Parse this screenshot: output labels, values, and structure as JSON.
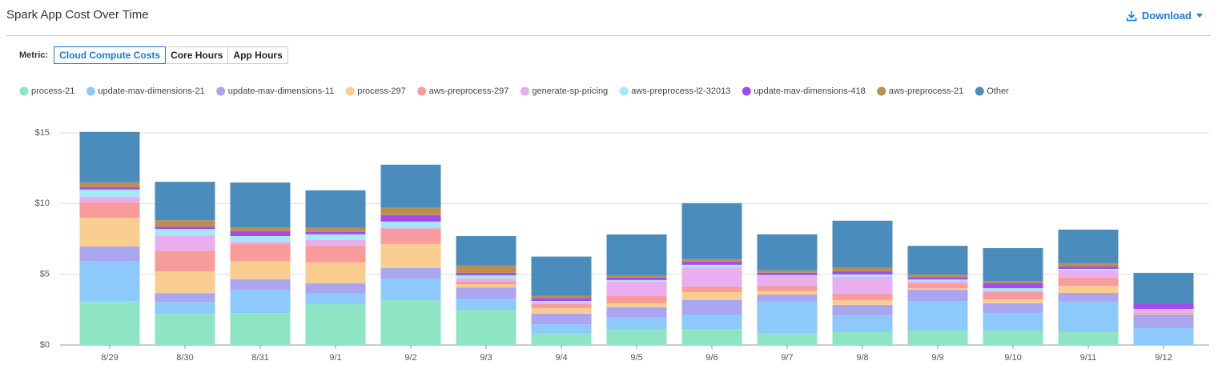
{
  "header": {
    "title": "Spark App Cost Over Time",
    "download": "Download"
  },
  "metric": {
    "label": "Metric:",
    "options": [
      "Cloud Compute Costs",
      "Core Hours",
      "App Hours"
    ],
    "selected": 0
  },
  "chart_data": {
    "type": "stacked-bar",
    "categories": [
      "8/29",
      "8/30",
      "8/31",
      "9/1",
      "9/2",
      "9/3",
      "9/4",
      "9/5",
      "9/6",
      "9/7",
      "9/8",
      "9/9",
      "9/10",
      "9/11",
      "9/12"
    ],
    "ylim": [
      0,
      15
    ],
    "yticks": [
      {
        "value": 0,
        "label": "$0"
      },
      {
        "value": 5,
        "label": "$5"
      },
      {
        "value": 10,
        "label": "$10"
      },
      {
        "value": 15,
        "label": "$15"
      }
    ],
    "grid": true,
    "series": [
      {
        "name": "process-21",
        "color": "#8de5c4",
        "values": [
          3.11,
          2.2,
          2.26,
          2.89,
          3.17,
          2.49,
          0.85,
          1.08,
          1.13,
          0.85,
          0.91,
          1.02,
          1.02,
          0.91,
          0
        ]
      },
      {
        "name": "update-mav-dimensions-21",
        "color": "#8ec9fb",
        "values": [
          2.83,
          0.85,
          1.64,
          0.74,
          1.53,
          0.79,
          0.62,
          0.85,
          1.02,
          2.21,
          1.19,
          2.09,
          1.25,
          2.15,
          1.19
        ]
      },
      {
        "name": "update-mav-dimensions-11",
        "color": "#aaa5f0",
        "values": [
          1.02,
          0.62,
          0.74,
          0.74,
          0.74,
          0.79,
          0.74,
          0.74,
          1.02,
          0.51,
          0.74,
          0.79,
          0.68,
          0.62,
          0.96
        ]
      },
      {
        "name": "process-297",
        "color": "#f9cd8f",
        "values": [
          2.04,
          1.53,
          1.3,
          1.47,
          1.7,
          0.23,
          0.4,
          0.28,
          0.57,
          0.23,
          0.34,
          0.11,
          0.28,
          0.51,
          0.06
        ]
      },
      {
        "name": "aws-preprocess-297",
        "color": "#f89c9b",
        "values": [
          1.08,
          1.47,
          1.19,
          1.19,
          1.08,
          0.17,
          0.28,
          0.51,
          0.4,
          0.4,
          0.45,
          0.34,
          0.51,
          0.57,
          0.06
        ]
      },
      {
        "name": "generate-sp-pricing",
        "color": "#e8aef0",
        "values": [
          0.4,
          1.08,
          0.17,
          0.4,
          0.11,
          0.23,
          0.11,
          1.02,
          1.36,
          0.68,
          1.19,
          0.17,
          0.11,
          0.51,
          0.28
        ]
      },
      {
        "name": "aws-preprocess-l2-32013",
        "color": "#a4e9f7",
        "values": [
          0.51,
          0.45,
          0.4,
          0.4,
          0.4,
          0.23,
          0.11,
          0.11,
          0.17,
          0.06,
          0.17,
          0.11,
          0.17,
          0.11,
          0
        ]
      },
      {
        "name": "update-mav-dimensions-418",
        "color": "#a44af0",
        "values": [
          0.17,
          0.17,
          0.34,
          0.17,
          0.45,
          0.17,
          0.2,
          0.17,
          0.23,
          0.17,
          0.23,
          0.17,
          0.34,
          0.17,
          0.34
        ]
      },
      {
        "name": "aws-preprocess-21",
        "color": "#b98f52",
        "values": [
          0.34,
          0.45,
          0.28,
          0.28,
          0.51,
          0.51,
          0.17,
          0.17,
          0.17,
          0.17,
          0.23,
          0.17,
          0.17,
          0.23,
          0
        ]
      },
      {
        "name": "Other",
        "color": "#4a8dbd",
        "values": [
          3.57,
          2.72,
          3.17,
          2.66,
          3.06,
          2.09,
          2.77,
          2.89,
          3.96,
          2.55,
          3.34,
          2.04,
          2.32,
          2.38,
          2.21
        ]
      }
    ]
  }
}
